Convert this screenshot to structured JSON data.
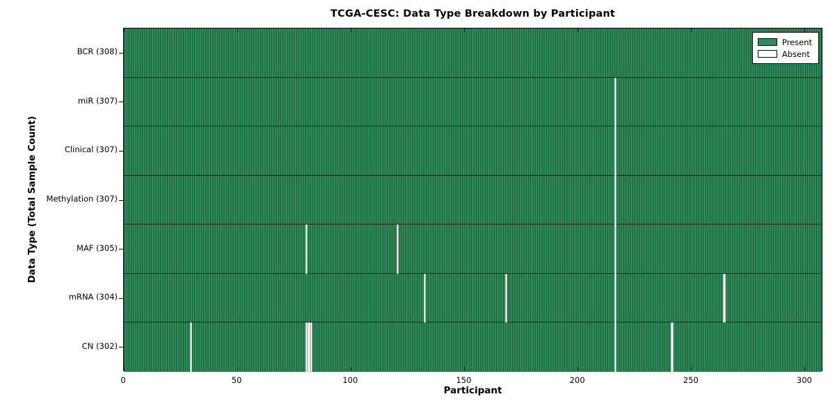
{
  "figure": {
    "title": "TCGA-CESC: Data Type Breakdown by Participant",
    "xlabel": "Participant",
    "ylabel": "Data Type (Total Sample Count)"
  },
  "legend": {
    "present_label": "Present",
    "absent_label": "Absent"
  },
  "chart_data": {
    "type": "heatmap",
    "title": "TCGA-CESC: Data Type Breakdown by Participant",
    "xlabel": "Participant",
    "ylabel": "Data Type (Total Sample Count)",
    "n_participants": 308,
    "xlim": [
      0,
      308
    ],
    "x_ticks": [
      0,
      50,
      100,
      150,
      200,
      250,
      300
    ],
    "legend_position": "upper right",
    "grid": false,
    "colors": {
      "present": "#2e8b57",
      "present_edge": "#1c5c39",
      "absent": "#ffffff",
      "border": "#000000"
    },
    "rows": [
      {
        "label": "BCR (308)",
        "name": "BCR",
        "present_count": 308,
        "absent_participants": []
      },
      {
        "label": "miR (307)",
        "name": "miR",
        "present_count": 307,
        "absent_participants": [
          216
        ]
      },
      {
        "label": "Clinical (307)",
        "name": "Clinical",
        "present_count": 307,
        "absent_participants": [
          216
        ]
      },
      {
        "label": "Methylation (307)",
        "name": "Methylation",
        "present_count": 307,
        "absent_participants": [
          216
        ]
      },
      {
        "label": "MAF (305)",
        "name": "MAF",
        "present_count": 305,
        "absent_participants": [
          80,
          120,
          216
        ]
      },
      {
        "label": "mRNA (304)",
        "name": "mRNA",
        "present_count": 304,
        "absent_participants": [
          132,
          168,
          216,
          264
        ]
      },
      {
        "label": "CN (302)",
        "name": "CN",
        "present_count": 302,
        "absent_participants": [
          29,
          80,
          81,
          82,
          216,
          241
        ]
      }
    ]
  }
}
